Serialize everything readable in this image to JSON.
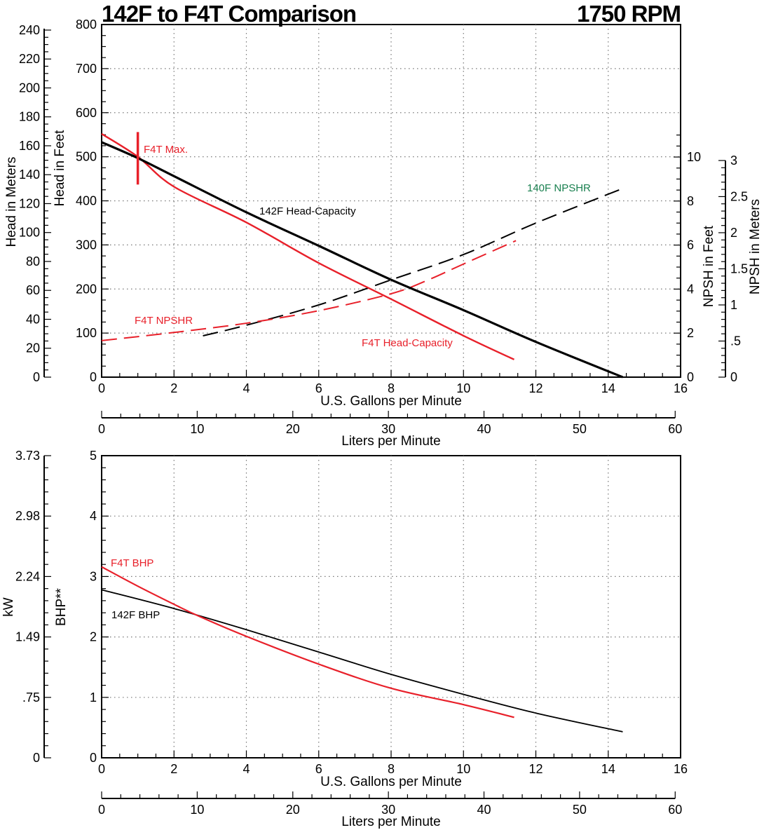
{
  "header": {
    "title": "142F to F4T Comparison",
    "rpm": "1750 RPM"
  },
  "colors": {
    "f4t": "#e8202a",
    "f142": "#000000",
    "f140_label": "#1a8050",
    "grid": "#808080"
  },
  "chart_data": [
    {
      "type": "line",
      "title": "142F to F4T Comparison",
      "xlabel": "U.S. Gallons per Minute",
      "xlim": [
        0,
        16
      ],
      "xticks": [
        "0",
        "2",
        "4",
        "6",
        "8",
        "10",
        "12",
        "14",
        "16"
      ],
      "x2label": "Liters per Minute",
      "x2lim": [
        0,
        60
      ],
      "x2ticks": [
        "0",
        "10",
        "20",
        "30",
        "40",
        "50",
        "60"
      ],
      "ylabel": "Head in Feet",
      "ylim": [
        0,
        800
      ],
      "yticks": [
        "0",
        "100",
        "200",
        "300",
        "400",
        "500",
        "600",
        "700",
        "800"
      ],
      "y2label": "Head in Meters",
      "y2ticks": [
        "0",
        "20",
        "40",
        "60",
        "80",
        "100",
        "120",
        "140",
        "160",
        "180",
        "200",
        "220",
        "240"
      ],
      "y3label": "NPSH in Feet",
      "y3lim": [
        0,
        10
      ],
      "y3ticks": [
        "0",
        "2",
        "4",
        "6",
        "8",
        "10"
      ],
      "y4label": "NPSH in Meters",
      "y4ticks": [
        "0",
        ".5",
        "1",
        "1.5",
        "2",
        "2.5",
        "3"
      ],
      "grid": true,
      "series": [
        {
          "name": "142F Head-Capacity",
          "axis": "head_ft",
          "style": "solid-thick",
          "color": "#000000",
          "points": [
            [
              0,
              533
            ],
            [
              1,
              497
            ],
            [
              2,
              456
            ],
            [
              4,
              374
            ],
            [
              6,
              298
            ],
            [
              8,
              221
            ],
            [
              10,
              152
            ],
            [
              12,
              80
            ],
            [
              14.4,
              0
            ]
          ]
        },
        {
          "name": "F4T Head-Capacity",
          "axis": "head_ft",
          "style": "solid",
          "color": "#e8202a",
          "points": [
            [
              0,
              552
            ],
            [
              1,
              500
            ],
            [
              2,
              432
            ],
            [
              4,
              351
            ],
            [
              6,
              259
            ],
            [
              8,
              177
            ],
            [
              10,
              94
            ],
            [
              11.4,
              40
            ]
          ]
        },
        {
          "name": "F4T NPSHR",
          "axis": "npsh_ft",
          "style": "dashed",
          "color": "#e8202a",
          "points": [
            [
              0,
              1.66
            ],
            [
              2,
              2.03
            ],
            [
              4,
              2.45
            ],
            [
              6,
              3.02
            ],
            [
              8,
              3.79
            ],
            [
              9,
              4.4
            ],
            [
              10,
              5.14
            ],
            [
              11.45,
              6.2
            ]
          ]
        },
        {
          "name": "140F NPSHR",
          "axis": "npsh_ft",
          "style": "dashed",
          "color": "#000000",
          "points": [
            [
              2.8,
              1.88
            ],
            [
              4,
              2.36
            ],
            [
              6,
              3.28
            ],
            [
              8,
              4.42
            ],
            [
              10,
              5.57
            ],
            [
              12,
              7.0
            ],
            [
              14.4,
              8.57
            ]
          ]
        }
      ],
      "annotations": [
        {
          "text": "F4T Max.",
          "type": "vertical-marker",
          "x": 1,
          "y_range": [
            437,
            556
          ],
          "color": "#e8202a"
        }
      ]
    },
    {
      "type": "line",
      "xlabel": "U.S. Gallons per Minute",
      "xlim": [
        0,
        16
      ],
      "xticks": [
        "0",
        "2",
        "4",
        "6",
        "8",
        "10",
        "12",
        "14",
        "16"
      ],
      "x2label": "Liters per Minute",
      "x2lim": [
        0,
        60
      ],
      "x2ticks": [
        "0",
        "10",
        "20",
        "30",
        "40",
        "50",
        "60"
      ],
      "ylabel": "BHP**",
      "ylim": [
        0,
        5
      ],
      "yticks": [
        "0",
        "1",
        "2",
        "3",
        "4",
        "5"
      ],
      "y2label": "kW",
      "y2ticks": [
        "0",
        ".75",
        "1.49",
        "2.24",
        "2.98",
        "3.73"
      ],
      "grid": true,
      "series": [
        {
          "name": "F4T BHP",
          "color": "#e8202a",
          "style": "solid",
          "points": [
            [
              0,
              3.16
            ],
            [
              1,
              2.84
            ],
            [
              2,
              2.54
            ],
            [
              2.7,
              2.34
            ],
            [
              4,
              2.01
            ],
            [
              6,
              1.55
            ],
            [
              8,
              1.15
            ],
            [
              10,
              0.88
            ],
            [
              11.4,
              0.67
            ]
          ]
        },
        {
          "name": "142F BHP",
          "color": "#000000",
          "style": "solid",
          "points": [
            [
              0,
              2.78
            ],
            [
              2,
              2.47
            ],
            [
              4,
              2.12
            ],
            [
              6,
              1.75
            ],
            [
              8,
              1.38
            ],
            [
              10,
              1.05
            ],
            [
              12,
              0.74
            ],
            [
              14.4,
              0.43
            ]
          ]
        }
      ]
    }
  ]
}
